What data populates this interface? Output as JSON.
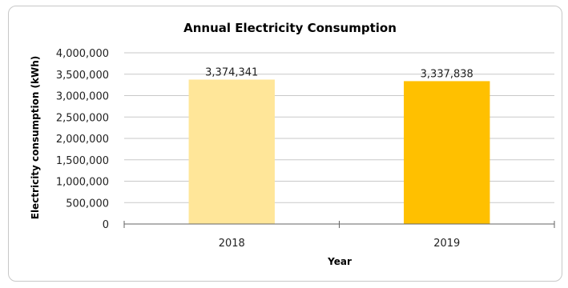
{
  "chart_data": {
    "type": "bar",
    "title": "Annual Electricity Consumption",
    "xlabel": "Year",
    "ylabel": "Electricity consumption (kWh)",
    "categories": [
      "2018",
      "2019"
    ],
    "values": [
      3374341,
      3337838
    ],
    "value_labels": [
      "3,374,341",
      "3,337,838"
    ],
    "bar_colors": [
      "#FFE699",
      "#FFC000"
    ],
    "ylim": [
      0,
      4000000
    ],
    "yticks": [
      0,
      500000,
      1000000,
      1500000,
      2000000,
      2500000,
      3000000,
      3500000,
      4000000
    ],
    "ytick_labels": [
      "0",
      "500,000",
      "1,000,000",
      "1,500,000",
      "2,000,000",
      "2,500,000",
      "3,000,000",
      "3,500,000",
      "4,000,000"
    ],
    "grid": true,
    "legend": "none"
  }
}
